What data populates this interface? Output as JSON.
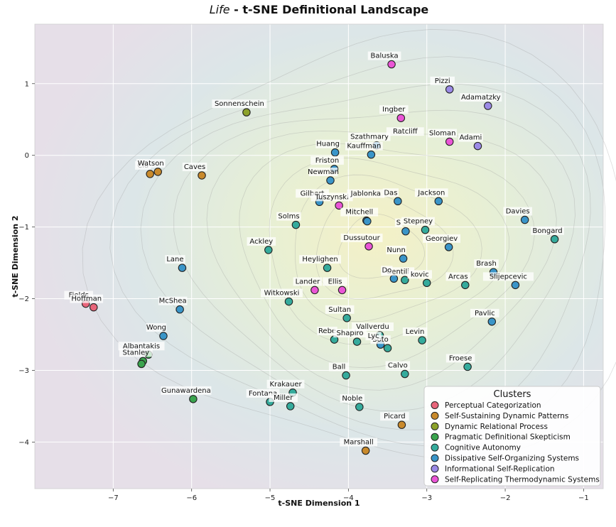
{
  "chart_data": {
    "type": "scatter",
    "title_italic": "Life",
    "title_rest": " - t-SNE Definitional Landscape",
    "xlabel": "t-SNE Dimension 1",
    "ylabel": "t-SNE Dimension 2",
    "xlim": [
      -8.0,
      -0.75
    ],
    "ylim": [
      -4.65,
      1.83
    ],
    "xticks": [
      -7,
      -6,
      -5,
      -4,
      -3,
      -2,
      -1
    ],
    "yticks": [
      1,
      0,
      -1,
      -2,
      -3,
      -4
    ],
    "xtick_labels": [
      "−7",
      "−6",
      "−5",
      "−4",
      "−3",
      "−2",
      "−1"
    ],
    "ytick_labels": [
      "1",
      "0",
      "−1",
      "−2",
      "−3",
      "−4"
    ],
    "grid": true,
    "legend_position": "bottom-right",
    "legend_title": "Clusters",
    "series": [
      {
        "name": "Perceptual Categorization",
        "color": "#e8657a",
        "points": [
          {
            "x": -7.35,
            "y": -2.07,
            "label": "Fields"
          },
          {
            "x": -7.25,
            "y": -2.12,
            "label": "Hoffman"
          }
        ]
      },
      {
        "name": "Self-Sustaining Dynamic Patterns",
        "color": "#c98a2c",
        "points": [
          {
            "x": -6.53,
            "y": -0.26,
            "label": "Cia"
          },
          {
            "x": -6.43,
            "y": -0.23,
            "label": "Watson"
          },
          {
            "x": -5.87,
            "y": -0.28,
            "label": "Caves"
          },
          {
            "x": -3.32,
            "y": -3.76,
            "label": "Picard"
          },
          {
            "x": -3.78,
            "y": -4.12,
            "label": "Marshall"
          }
        ]
      },
      {
        "name": "Dynamic Relational Process",
        "color": "#8ca22a",
        "points": [
          {
            "x": -5.3,
            "y": 0.6,
            "label": "Sonnenschein"
          }
        ]
      },
      {
        "name": "Pragmatic Definitional Skepticism",
        "color": "#3aa44e",
        "points": [
          {
            "x": -6.55,
            "y": -2.78,
            "label": "Albantakis"
          },
          {
            "x": -6.62,
            "y": -2.87,
            "label": "Stanley"
          },
          {
            "x": -6.64,
            "y": -2.91,
            "label": ""
          },
          {
            "x": -5.98,
            "y": -3.4,
            "label": "Gunawardena"
          }
        ]
      },
      {
        "name": "Cognitive Autonomy",
        "color": "#35ab9c",
        "points": [
          {
            "x": -4.67,
            "y": -0.97,
            "label": "Solms"
          },
          {
            "x": -5.02,
            "y": -1.32,
            "label": "Ackley"
          },
          {
            "x": -4.27,
            "y": -1.57,
            "label": "Heylighen"
          },
          {
            "x": -4.76,
            "y": -2.04,
            "label": "Witkowski"
          },
          {
            "x": -4.02,
            "y": -2.27,
            "label": "Sultan"
          },
          {
            "x": -4.18,
            "y": -2.57,
            "label": "Rebe"
          },
          {
            "x": -3.89,
            "y": -2.6,
            "label": "Shapiro"
          },
          {
            "x": -3.6,
            "y": -2.51,
            "label": "Vallverdu"
          },
          {
            "x": -3.5,
            "y": -2.69,
            "label": "Soto"
          },
          {
            "x": -3.06,
            "y": -2.58,
            "label": "Levin"
          },
          {
            "x": -4.03,
            "y": -3.07,
            "label": "Ball"
          },
          {
            "x": -3.28,
            "y": -3.05,
            "label": "Calvo"
          },
          {
            "x": -4.71,
            "y": -3.31,
            "label": "Krakauer"
          },
          {
            "x": -5.0,
            "y": -3.44,
            "label": "Fontana"
          },
          {
            "x": -4.74,
            "y": -3.5,
            "label": "Miller"
          },
          {
            "x": -3.86,
            "y": -3.51,
            "label": "Noble"
          },
          {
            "x": -3.02,
            "y": -1.04,
            "label": "Stepney"
          },
          {
            "x": -3.28,
            "y": -1.74,
            "label": "Gentili"
          },
          {
            "x": -3.0,
            "y": -1.78,
            "label": "kovic"
          },
          {
            "x": -2.51,
            "y": -1.81,
            "label": "Arcas"
          },
          {
            "x": -2.48,
            "y": -2.95,
            "label": "Froese"
          },
          {
            "x": -1.37,
            "y": -1.17,
            "label": "Bongard"
          }
        ]
      },
      {
        "name": "Dissipative Self-Organizing Systems",
        "color": "#3a95c8",
        "points": [
          {
            "x": -4.17,
            "y": 0.04,
            "label": "Huang"
          },
          {
            "x": -3.64,
            "y": 0.14,
            "label": "Szathmary"
          },
          {
            "x": -3.71,
            "y": 0.01,
            "label": "Kauffman"
          },
          {
            "x": -4.18,
            "y": -0.19,
            "label": "Friston"
          },
          {
            "x": -4.23,
            "y": -0.35,
            "label": "Newman"
          },
          {
            "x": -4.37,
            "y": -0.65,
            "label": "Gilbert"
          },
          {
            "x": -3.77,
            "y": -0.91,
            "label": "Mitchell"
          },
          {
            "x": -3.37,
            "y": -0.64,
            "label": "Das"
          },
          {
            "x": -2.85,
            "y": -0.64,
            "label": "Jackson"
          },
          {
            "x": -3.27,
            "y": -1.06,
            "label": "S"
          },
          {
            "x": -2.72,
            "y": -1.28,
            "label": "Georgiev"
          },
          {
            "x": -3.3,
            "y": -1.44,
            "label": "Nunn"
          },
          {
            "x": -1.75,
            "y": -0.9,
            "label": "Davies"
          },
          {
            "x": -2.15,
            "y": -1.63,
            "label": "Brash"
          },
          {
            "x": -1.87,
            "y": -1.81,
            "label": "Slijepcevic"
          },
          {
            "x": -2.17,
            "y": -2.32,
            "label": "Pavlic"
          },
          {
            "x": -6.12,
            "y": -1.57,
            "label": "Lane"
          },
          {
            "x": -6.15,
            "y": -2.15,
            "label": "McShea"
          },
          {
            "x": -6.36,
            "y": -2.52,
            "label": "Wong"
          },
          {
            "x": -3.59,
            "y": -2.64,
            "label": "Lyc"
          },
          {
            "x": -3.76,
            "y": -0.92,
            "label": ""
          },
          {
            "x": -3.42,
            "y": -1.72,
            "label": "Do"
          }
        ]
      },
      {
        "name": "Informational Self-Replication",
        "color": "#9b8ae6",
        "points": [
          {
            "x": -2.71,
            "y": 0.92,
            "label": "Pizzi"
          },
          {
            "x": -2.22,
            "y": 0.69,
            "label": "Adamatzky"
          },
          {
            "x": -2.35,
            "y": 0.13,
            "label": "Adami"
          }
        ]
      },
      {
        "name": "Self-Replicating Thermodynamic Systems",
        "color": "#ea55d6",
        "points": [
          {
            "x": -3.45,
            "y": 1.27,
            "label": "Baluska"
          },
          {
            "x": -3.33,
            "y": 0.52,
            "label": "Ingber"
          },
          {
            "x": -2.71,
            "y": 0.19,
            "label": "Sloman"
          },
          {
            "x": -4.12,
            "y": -0.7,
            "label": "Tuszynski"
          },
          {
            "x": -3.74,
            "y": -1.27,
            "label": "Dussutour"
          },
          {
            "x": -4.43,
            "y": -1.88,
            "label": "Lander"
          },
          {
            "x": -4.08,
            "y": -1.88,
            "label": "Ellis"
          }
        ]
      }
    ],
    "extra_labels": [
      {
        "x": -3.33,
        "y": 0.52,
        "text": "Ratcliff",
        "dx": 6,
        "dy": 22
      },
      {
        "x": -3.76,
        "y": -0.92,
        "text": "Jablonka",
        "dx": -2,
        "dy": -36
      }
    ]
  }
}
